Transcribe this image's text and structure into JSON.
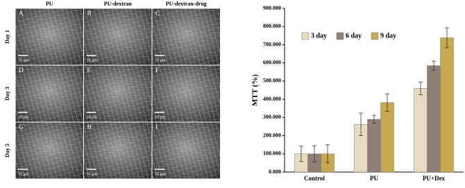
{
  "sem_figure": {
    "columns": [
      "PU",
      "PU-dextran",
      "PU-dextran-drug"
    ],
    "rows": [
      "Day 1",
      "Day 3",
      "Day 5"
    ],
    "panels": [
      "A",
      "B",
      "C",
      "D",
      "E",
      "F",
      "G",
      "H",
      "I"
    ],
    "scale_bar": "10 µm"
  },
  "chart_data": {
    "type": "bar",
    "y_label": "MTT (%)",
    "categories": [
      "Control",
      "PU",
      "PU+Dex"
    ],
    "series": [
      {
        "name": "3 day",
        "color": "#e6dcc2",
        "values": [
          100,
          262,
          460
        ],
        "errors": [
          42,
          62,
          35
        ]
      },
      {
        "name": "6 day",
        "color": "#8e8074",
        "values": [
          100,
          290,
          585
        ],
        "errors": [
          45,
          22,
          25
        ]
      },
      {
        "name": "9 day",
        "color": "#c9a94f",
        "values": [
          100,
          382,
          738
        ],
        "errors": [
          50,
          48,
          55
        ]
      }
    ],
    "ylim": [
      0,
      900
    ],
    "yticks": [
      {
        "value": 0,
        "label": "0.000"
      },
      {
        "value": 100,
        "label": "100.000"
      },
      {
        "value": 200,
        "label": "200.000"
      },
      {
        "value": 300,
        "label": "300.000"
      },
      {
        "value": 400,
        "label": "400.000"
      },
      {
        "value": 500,
        "label": "500.000"
      },
      {
        "value": 600,
        "label": "600.000"
      },
      {
        "value": 700,
        "label": "700.000"
      },
      {
        "value": 800,
        "label": "800.000"
      },
      {
        "value": 900,
        "label": "900.000"
      }
    ],
    "legend": "upper-left"
  }
}
